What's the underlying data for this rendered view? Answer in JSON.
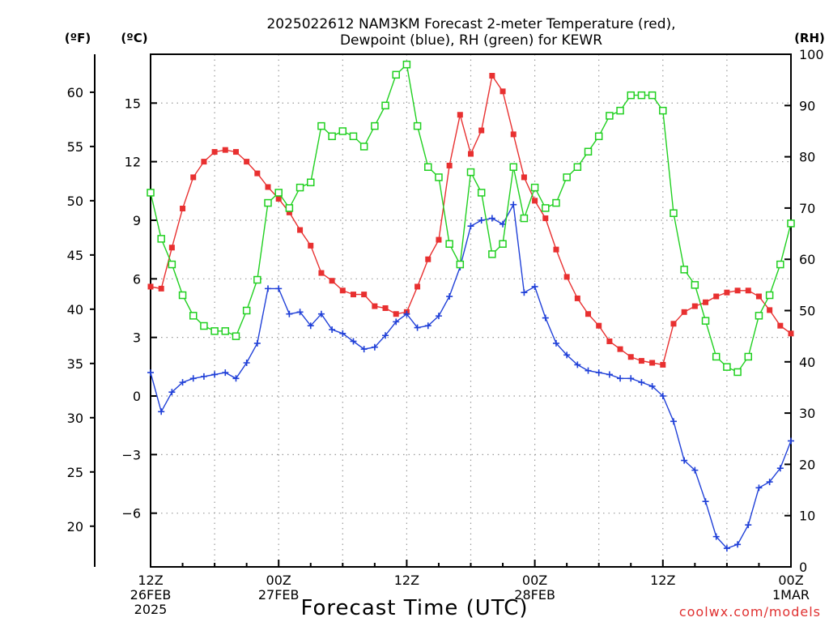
{
  "chart_data": {
    "type": "line",
    "title_line1": "2025022612 NAM3KM Forecast 2-meter Temperature (red),",
    "title_line2": "Dewpoint (blue), RH (green) for KEWR",
    "xlabel": "Forecast Time (UTC)",
    "credit": "coolwx.com/models",
    "units": {
      "fahrenheit": "(ºF)",
      "celsius": "(ºC)",
      "rh": "(RH)"
    },
    "x_range_hours": [
      0,
      60
    ],
    "y_range_c": [
      -8.75,
      17.5
    ],
    "y_range_rh": [
      0,
      100
    ],
    "y_range_f": [
      16.25,
      63.5
    ],
    "celsius_ticks": [
      -6,
      -3,
      0,
      3,
      6,
      9,
      12,
      15
    ],
    "fahrenheit_ticks": [
      20,
      25,
      30,
      35,
      40,
      45,
      50,
      55,
      60
    ],
    "rh_ticks": [
      0,
      10,
      20,
      30,
      40,
      50,
      60,
      70,
      80,
      90,
      100
    ],
    "x_ticks": [
      {
        "hour": 0,
        "lines": [
          "12Z",
          "26FEB",
          "2025"
        ]
      },
      {
        "hour": 12,
        "lines": [
          "00Z",
          "27FEB"
        ]
      },
      {
        "hour": 24,
        "lines": [
          "12Z"
        ]
      },
      {
        "hour": 36,
        "lines": [
          "00Z",
          "28FEB"
        ]
      },
      {
        "hour": 48,
        "lines": [
          "12Z"
        ]
      },
      {
        "hour": 60,
        "lines": [
          "00Z",
          "1MAR"
        ]
      }
    ],
    "series": [
      {
        "key": "temperature",
        "color": "#e83030",
        "marker": "filled-square",
        "units": "C",
        "values": [
          5.6,
          5.5,
          7.6,
          9.6,
          11.2,
          12.0,
          12.5,
          12.6,
          12.5,
          12.0,
          11.4,
          10.7,
          10.1,
          9.4,
          8.5,
          7.7,
          6.3,
          5.9,
          5.4,
          5.2,
          5.2,
          4.6,
          4.5,
          4.2,
          4.3,
          5.6,
          7.0,
          8.0,
          11.8,
          14.4,
          12.4,
          13.6,
          16.4,
          15.6,
          13.4,
          11.2,
          10.0,
          9.1,
          7.5,
          6.1,
          5.0,
          4.2,
          3.6,
          2.8,
          2.4,
          2.0,
          1.8,
          1.7,
          1.6,
          3.7,
          4.3,
          4.6,
          4.8,
          5.1,
          5.3,
          5.4,
          5.4,
          5.1,
          4.4,
          3.6,
          3.2
        ]
      },
      {
        "key": "dewpoint",
        "color": "#2040d8",
        "marker": "plus",
        "units": "C",
        "values": [
          1.2,
          -0.8,
          0.2,
          0.7,
          0.9,
          1.0,
          1.1,
          1.2,
          0.9,
          1.7,
          2.7,
          5.5,
          5.5,
          4.2,
          4.3,
          3.6,
          4.2,
          3.4,
          3.2,
          2.8,
          2.4,
          2.5,
          3.1,
          3.8,
          4.2,
          3.5,
          3.6,
          4.1,
          5.1,
          6.6,
          8.7,
          9.0,
          9.1,
          8.8,
          9.8,
          5.3,
          5.6,
          4.0,
          2.7,
          2.1,
          1.6,
          1.3,
          1.2,
          1.1,
          0.9,
          0.9,
          0.7,
          0.5,
          0.0,
          -1.3,
          -3.3,
          -3.8,
          -5.4,
          -7.2,
          -7.8,
          -7.6,
          -6.6,
          -4.7,
          -4.4,
          -3.7,
          -2.3
        ]
      },
      {
        "key": "rh",
        "color": "#20d020",
        "marker": "open-square",
        "units": "percent",
        "values": [
          73,
          64,
          59,
          53,
          49,
          47,
          46,
          46,
          45,
          50,
          56,
          71,
          73,
          70,
          74,
          75,
          86,
          84,
          85,
          84,
          82,
          86,
          90,
          96,
          98,
          86,
          78,
          76,
          63,
          59,
          77,
          73,
          61,
          63,
          78,
          68,
          74,
          70,
          71,
          76,
          78,
          81,
          84,
          88,
          89,
          92,
          92,
          92,
          89,
          69,
          58,
          55,
          48,
          41,
          39,
          38,
          41,
          49,
          53,
          59,
          67
        ]
      }
    ]
  }
}
